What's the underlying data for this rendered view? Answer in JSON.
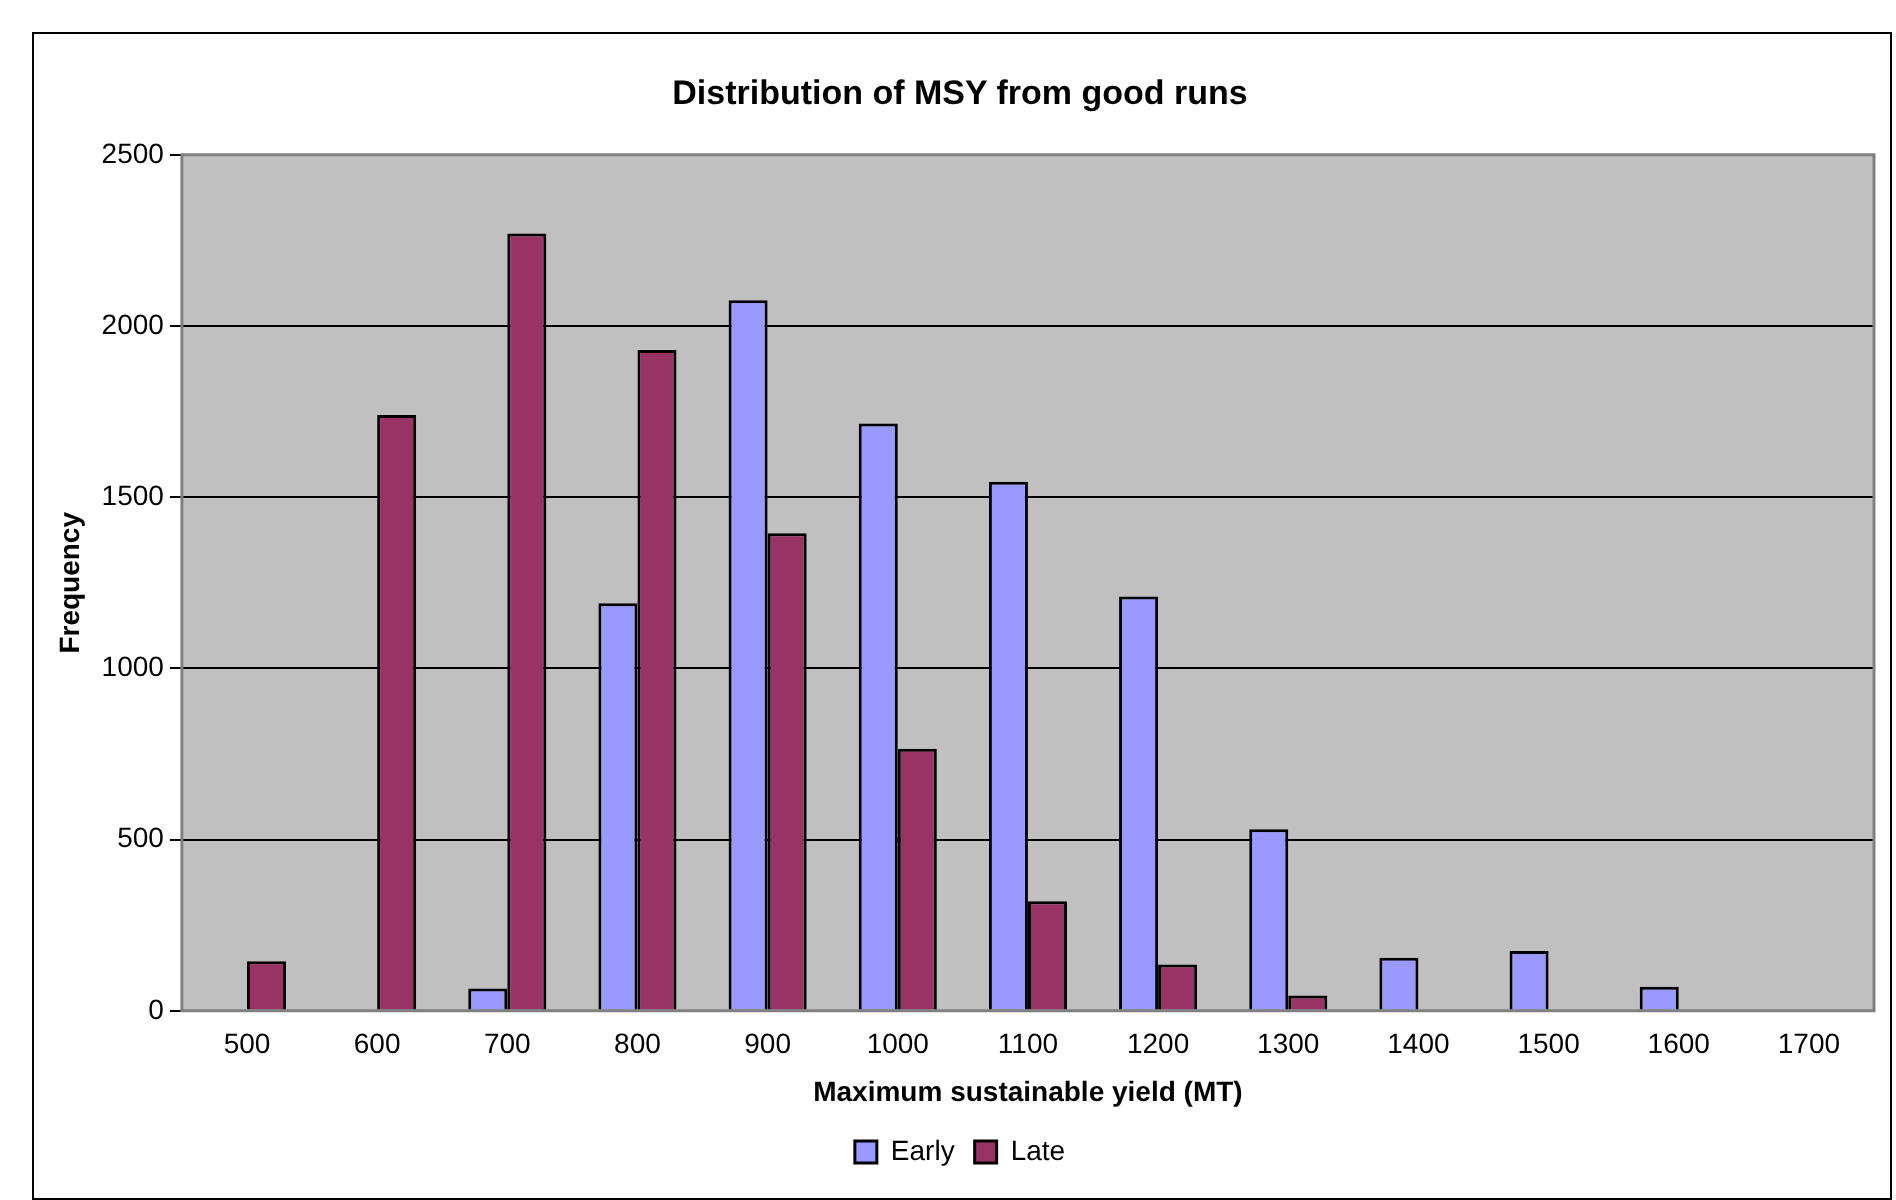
{
  "chart_data": {
    "type": "bar",
    "title": "Distribution of MSY from good runs",
    "xlabel": "Maximum sustainable yield (MT)",
    "ylabel": "Frequency",
    "categories": [
      "500",
      "600",
      "700",
      "800",
      "900",
      "1000",
      "1100",
      "1200",
      "1300",
      "1400",
      "1500",
      "1600",
      "1700"
    ],
    "series": [
      {
        "name": "Early",
        "color": "#9999ff",
        "values": [
          0,
          0,
          65,
          1190,
          2075,
          1715,
          1545,
          1210,
          530,
          155,
          175,
          70,
          0
        ]
      },
      {
        "name": "Late",
        "color": "#993366",
        "values": [
          145,
          1740,
          2270,
          1930,
          1395,
          765,
          320,
          135,
          45,
          0,
          0,
          0,
          0
        ]
      }
    ],
    "ylim": [
      0,
      2500
    ],
    "yticks": [
      0,
      500,
      1000,
      1500,
      2000,
      2500
    ],
    "grid": "y",
    "legend": "bottom"
  }
}
